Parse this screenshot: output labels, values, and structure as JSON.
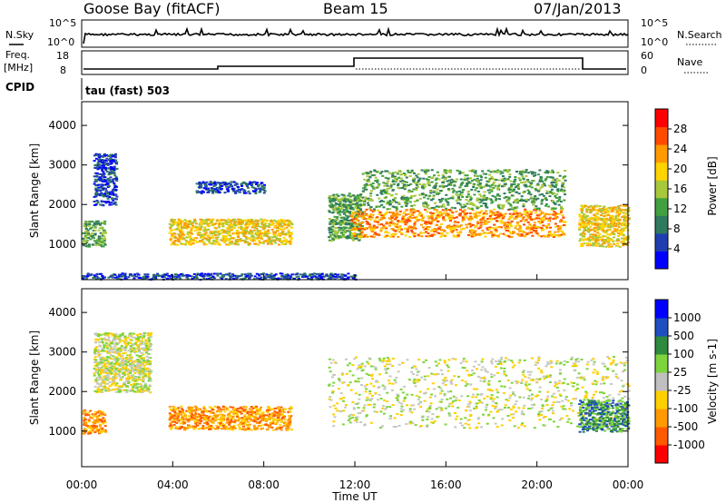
{
  "header": {
    "station": "Goose Bay (fitACF)",
    "beam": "Beam 15",
    "date": "07/Jan/2013"
  },
  "noise_panel": {
    "left_label": "N.Sky",
    "right_label": "N.Search",
    "left_ticks": [
      "10^5",
      "10^0"
    ],
    "right_ticks": [
      "10^5",
      "10^0"
    ]
  },
  "freq_panel": {
    "left_label_1": "Freq.",
    "left_label_2": "[MHz]",
    "right_label": "Nave",
    "left_ticks": [
      "18",
      "8"
    ],
    "right_ticks": [
      "60",
      "0"
    ]
  },
  "cpid": {
    "label": "CPID",
    "value": "tau (fast) 503"
  },
  "colors": {
    "power": [
      "#0000ff",
      "#1f3fb0",
      "#2f7a5f",
      "#41a03f",
      "#a8c83c",
      "#ffd400",
      "#ff9a00",
      "#ff4a00",
      "#ff0000"
    ],
    "velocity": [
      "#ff0000",
      "#ff5a00",
      "#ff9a00",
      "#ffd000",
      "#c0c0c0",
      "#7ed43c",
      "#2e8a3c",
      "#1f4fc0",
      "#0000ff"
    ],
    "ground_scatter": "#c8c8c0"
  },
  "chart_data": [
    {
      "type": "heatmap",
      "name": "power",
      "ylabel": "Slant Range [km]",
      "yticks": [
        1000,
        2000,
        3000,
        4000
      ],
      "ylim": [
        100,
        4600
      ],
      "xlim": [
        0,
        24
      ],
      "colorbar": {
        "label": "Power [dB]",
        "ticks": [
          "4",
          "8",
          "12",
          "16",
          "20",
          "24",
          "28"
        ],
        "range": [
          0,
          32
        ]
      },
      "bands": [
        {
          "x": [
            0.0,
            1.0
          ],
          "y": [
            950,
            1600
          ],
          "level": 3
        },
        {
          "x": [
            0.5,
            1.5
          ],
          "y": [
            2000,
            3300
          ],
          "level": 1
        },
        {
          "x": [
            3.8,
            9.2
          ],
          "y": [
            1000,
            1650
          ],
          "level": 5
        },
        {
          "x": [
            5.0,
            8.0
          ],
          "y": [
            2300,
            2600
          ],
          "level": 1
        },
        {
          "x": [
            10.8,
            12.3
          ],
          "y": [
            1100,
            2300
          ],
          "level": 3
        },
        {
          "x": [
            11.8,
            21.2
          ],
          "y": [
            1200,
            1900
          ],
          "level": 6
        },
        {
          "x": [
            12.3,
            21.2
          ],
          "y": [
            1900,
            2900
          ],
          "level": 3
        },
        {
          "x": [
            21.8,
            24.0
          ],
          "y": [
            950,
            2000
          ],
          "level": 5
        },
        {
          "x": [
            0.0,
            12.0
          ],
          "y": [
            120,
            280
          ],
          "level": 1
        }
      ]
    },
    {
      "type": "heatmap",
      "name": "velocity",
      "ylabel": "Slant Range [km]",
      "xlabel": "Time UT",
      "xticks": [
        "00:00",
        "04:00",
        "08:00",
        "12:00",
        "16:00",
        "20:00",
        "00:00"
      ],
      "yticks": [
        1000,
        2000,
        3000,
        4000
      ],
      "ylim": [
        100,
        4600
      ],
      "xlim": [
        0,
        24
      ],
      "colorbar": {
        "label": "Velocity [m s-1]",
        "ticks": [
          "1000",
          "500",
          "100",
          "25",
          "-25",
          "-100",
          "-500",
          "-1000"
        ]
      },
      "bands": [
        {
          "x": [
            0.0,
            1.0
          ],
          "y": [
            950,
            1550
          ],
          "level": 2
        },
        {
          "x": [
            3.8,
            9.2
          ],
          "y": [
            1050,
            1650
          ],
          "level": 2
        },
        {
          "x": [
            0.5,
            3.0
          ],
          "y": [
            2000,
            3500
          ],
          "level": 4
        },
        {
          "x": [
            10.8,
            24.0
          ],
          "y": [
            1100,
            2900
          ],
          "level": 4
        },
        {
          "x": [
            21.8,
            24.0
          ],
          "y": [
            1000,
            1800
          ],
          "level": 6
        }
      ]
    }
  ]
}
